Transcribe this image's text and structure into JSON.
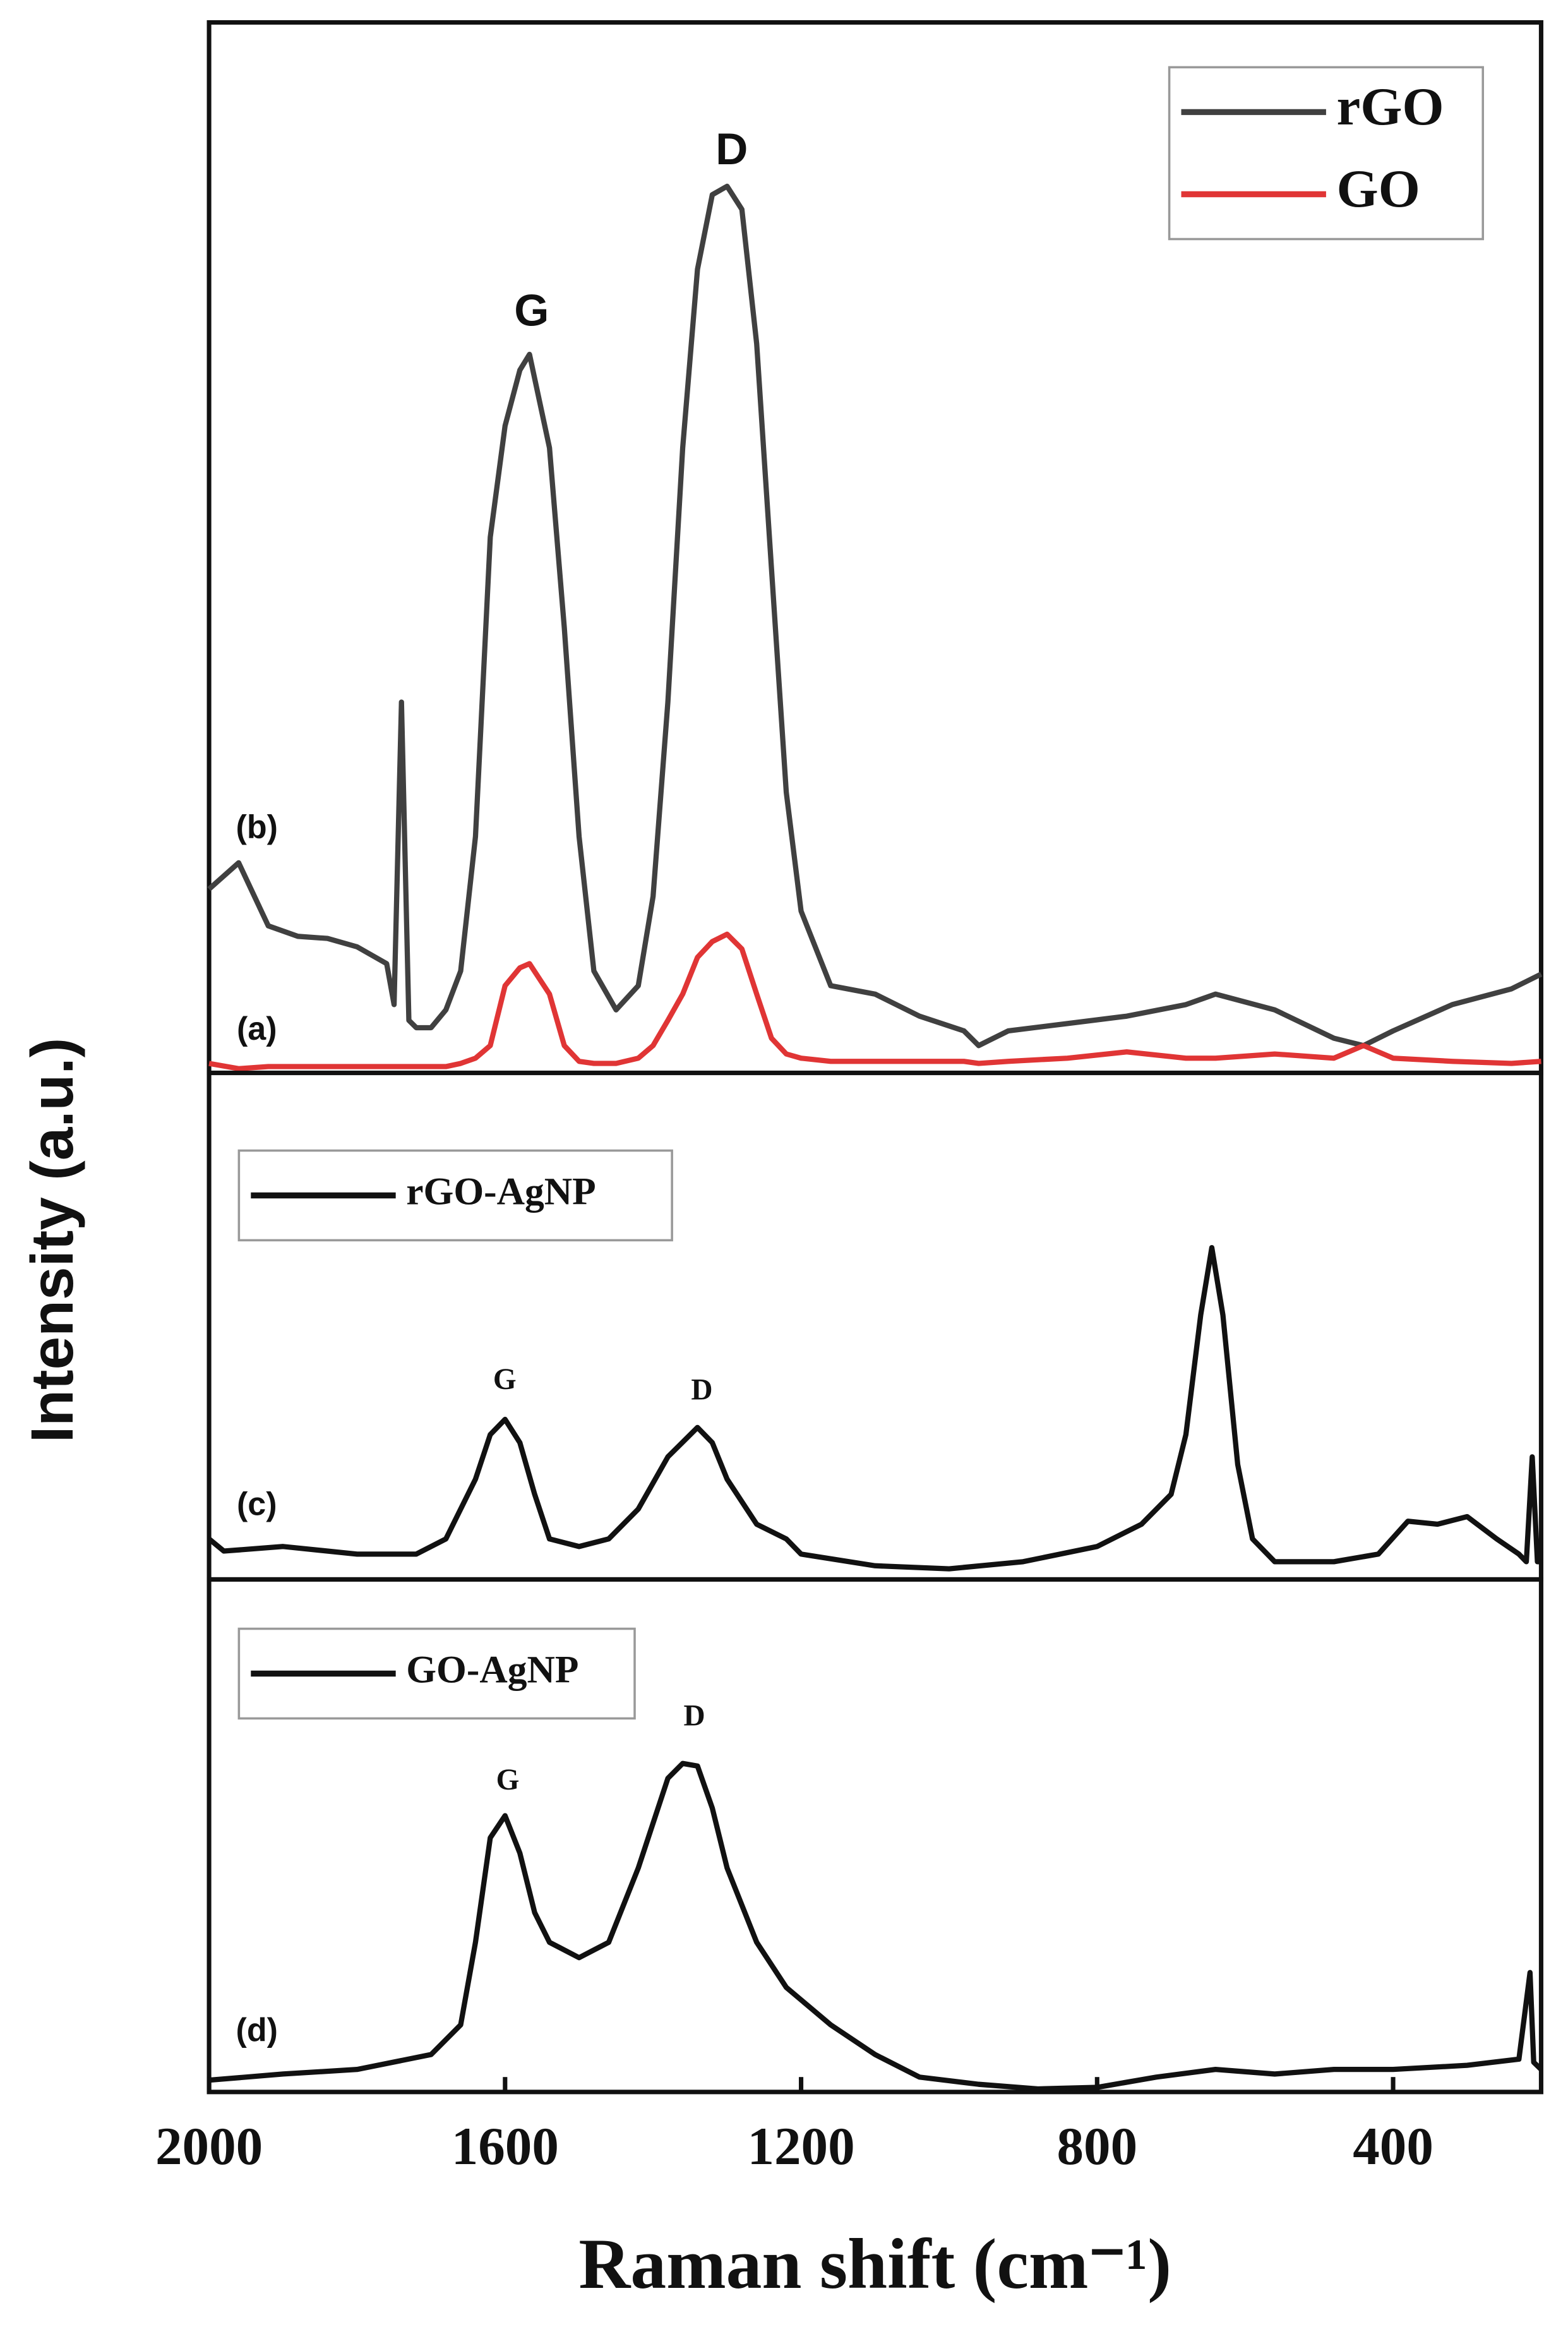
{
  "chart_data": [
    {
      "type": "line",
      "annotations": [
        "G",
        "D",
        "(b)",
        "(a)"
      ],
      "legend": "upper right",
      "xlim": [
        2000,
        200
      ],
      "ylim": [
        0,
        100
      ],
      "x": [
        2000,
        1960,
        1920,
        1880,
        1840,
        1800,
        1760,
        1750,
        1740,
        1730,
        1720,
        1700,
        1680,
        1660,
        1640,
        1620,
        1600,
        1580,
        1567,
        1540,
        1520,
        1500,
        1480,
        1450,
        1420,
        1400,
        1380,
        1360,
        1340,
        1320,
        1300,
        1280,
        1260,
        1240,
        1220,
        1200,
        1160,
        1100,
        1040,
        980,
        960,
        920,
        840,
        760,
        680,
        640,
        560,
        480,
        440,
        400,
        320,
        240,
        200
      ],
      "series": [
        {
          "name": "rGO",
          "color": "#404040",
          "values": [
            17.5,
            20,
            14,
            13,
            12.8,
            12,
            10.4,
            6.5,
            35.3,
            5,
            4.3,
            4.3,
            6,
            9.7,
            22.5,
            51,
            61.6,
            66.9,
            68.4,
            59.5,
            42.4,
            22.5,
            9.7,
            6,
            8.3,
            16.8,
            35.3,
            59.5,
            76.5,
            83.6,
            84.4,
            82.2,
            69.4,
            48,
            26.7,
            15.4,
            8.3,
            7.5,
            5.4,
            4,
            2.6,
            4,
            4.7,
            5.4,
            6.5,
            7.5,
            6,
            3.3,
            2.6,
            4,
            6.5,
            8,
            9.4
          ]
        },
        {
          "name": "GO",
          "color": "#e03535",
          "values": [
            0.9,
            0.4,
            0.6,
            0.6,
            0.6,
            0.6,
            0.6,
            0.6,
            0.6,
            0.6,
            0.6,
            0.6,
            0.6,
            0.9,
            1.4,
            2.6,
            8.3,
            10,
            10.4,
            7.5,
            2.6,
            1.1,
            0.9,
            0.9,
            1.4,
            2.6,
            5,
            7.5,
            11,
            12.5,
            13.2,
            11.8,
            7.5,
            3.3,
            1.8,
            1.4,
            1.1,
            1.1,
            1.1,
            1.1,
            0.9,
            1.1,
            1.4,
            2,
            1.4,
            1.4,
            1.8,
            1.4,
            2.6,
            1.4,
            1.1,
            0.9,
            1.1
          ]
        }
      ]
    },
    {
      "type": "line",
      "ylabel": "Intensity (a.u.)",
      "annotations": [
        "G",
        "D",
        "(c)"
      ],
      "legend": "upper left",
      "xlim": [
        2000,
        200
      ],
      "ylim": [
        0,
        100
      ],
      "x": [
        2000,
        1980,
        1900,
        1800,
        1720,
        1680,
        1640,
        1620,
        1600,
        1580,
        1560,
        1540,
        1500,
        1460,
        1420,
        1380,
        1340,
        1320,
        1300,
        1260,
        1220,
        1200,
        1100,
        1000,
        900,
        800,
        740,
        700,
        680,
        660,
        645,
        630,
        610,
        590,
        560,
        480,
        420,
        380,
        340,
        300,
        260,
        230,
        220,
        212,
        205,
        200
      ],
      "series": [
        {
          "name": "rGO-AgNP",
          "color": "#111111",
          "values": [
            8,
            5.6,
            6.5,
            5,
            5,
            8,
            19.8,
            28.6,
            31.6,
            27,
            16.8,
            8,
            6.5,
            8,
            13.9,
            24.2,
            30,
            27,
            19.8,
            10.9,
            8,
            5,
            2.7,
            2.1,
            3.5,
            6.5,
            10.9,
            16.8,
            28.6,
            52.2,
            65.5,
            52.2,
            22.7,
            8,
            3.5,
            3.5,
            5,
            11.5,
            10.9,
            12.4,
            8,
            5,
            3.5,
            24.2,
            3.5,
            3.5
          ]
        }
      ]
    },
    {
      "type": "line",
      "xlabel": "Raman shift (cm⁻¹)",
      "annotations": [
        "G",
        "D",
        "(d)"
      ],
      "legend": "upper left",
      "xlim": [
        2000,
        200
      ],
      "ylim": [
        0,
        100
      ],
      "xticks": [
        2000,
        1600,
        1200,
        800,
        400
      ],
      "x": [
        2000,
        1900,
        1800,
        1700,
        1660,
        1640,
        1620,
        1600,
        1580,
        1560,
        1540,
        1500,
        1480,
        1460,
        1420,
        1380,
        1360,
        1340,
        1320,
        1300,
        1260,
        1220,
        1160,
        1100,
        1040,
        960,
        880,
        800,
        720,
        640,
        560,
        480,
        400,
        300,
        230,
        215,
        210,
        200
      ],
      "series": [
        {
          "name": "GO-AgNP",
          "color": "#111111",
          "values": [
            2.3,
            3.5,
            4.4,
            7.3,
            13.1,
            29.2,
            49.6,
            53.9,
            46.6,
            35,
            29.2,
            26.2,
            27.7,
            29.2,
            43.7,
            61.2,
            64.1,
            63.6,
            55.4,
            43.7,
            29.2,
            20.4,
            13.1,
            7.3,
            2.9,
            1.5,
            0.6,
            0.9,
            2.9,
            4.4,
            3.5,
            4.4,
            4.4,
            5.2,
            6.4,
            23.3,
            5.8,
            4.4
          ]
        }
      ]
    }
  ]
}
